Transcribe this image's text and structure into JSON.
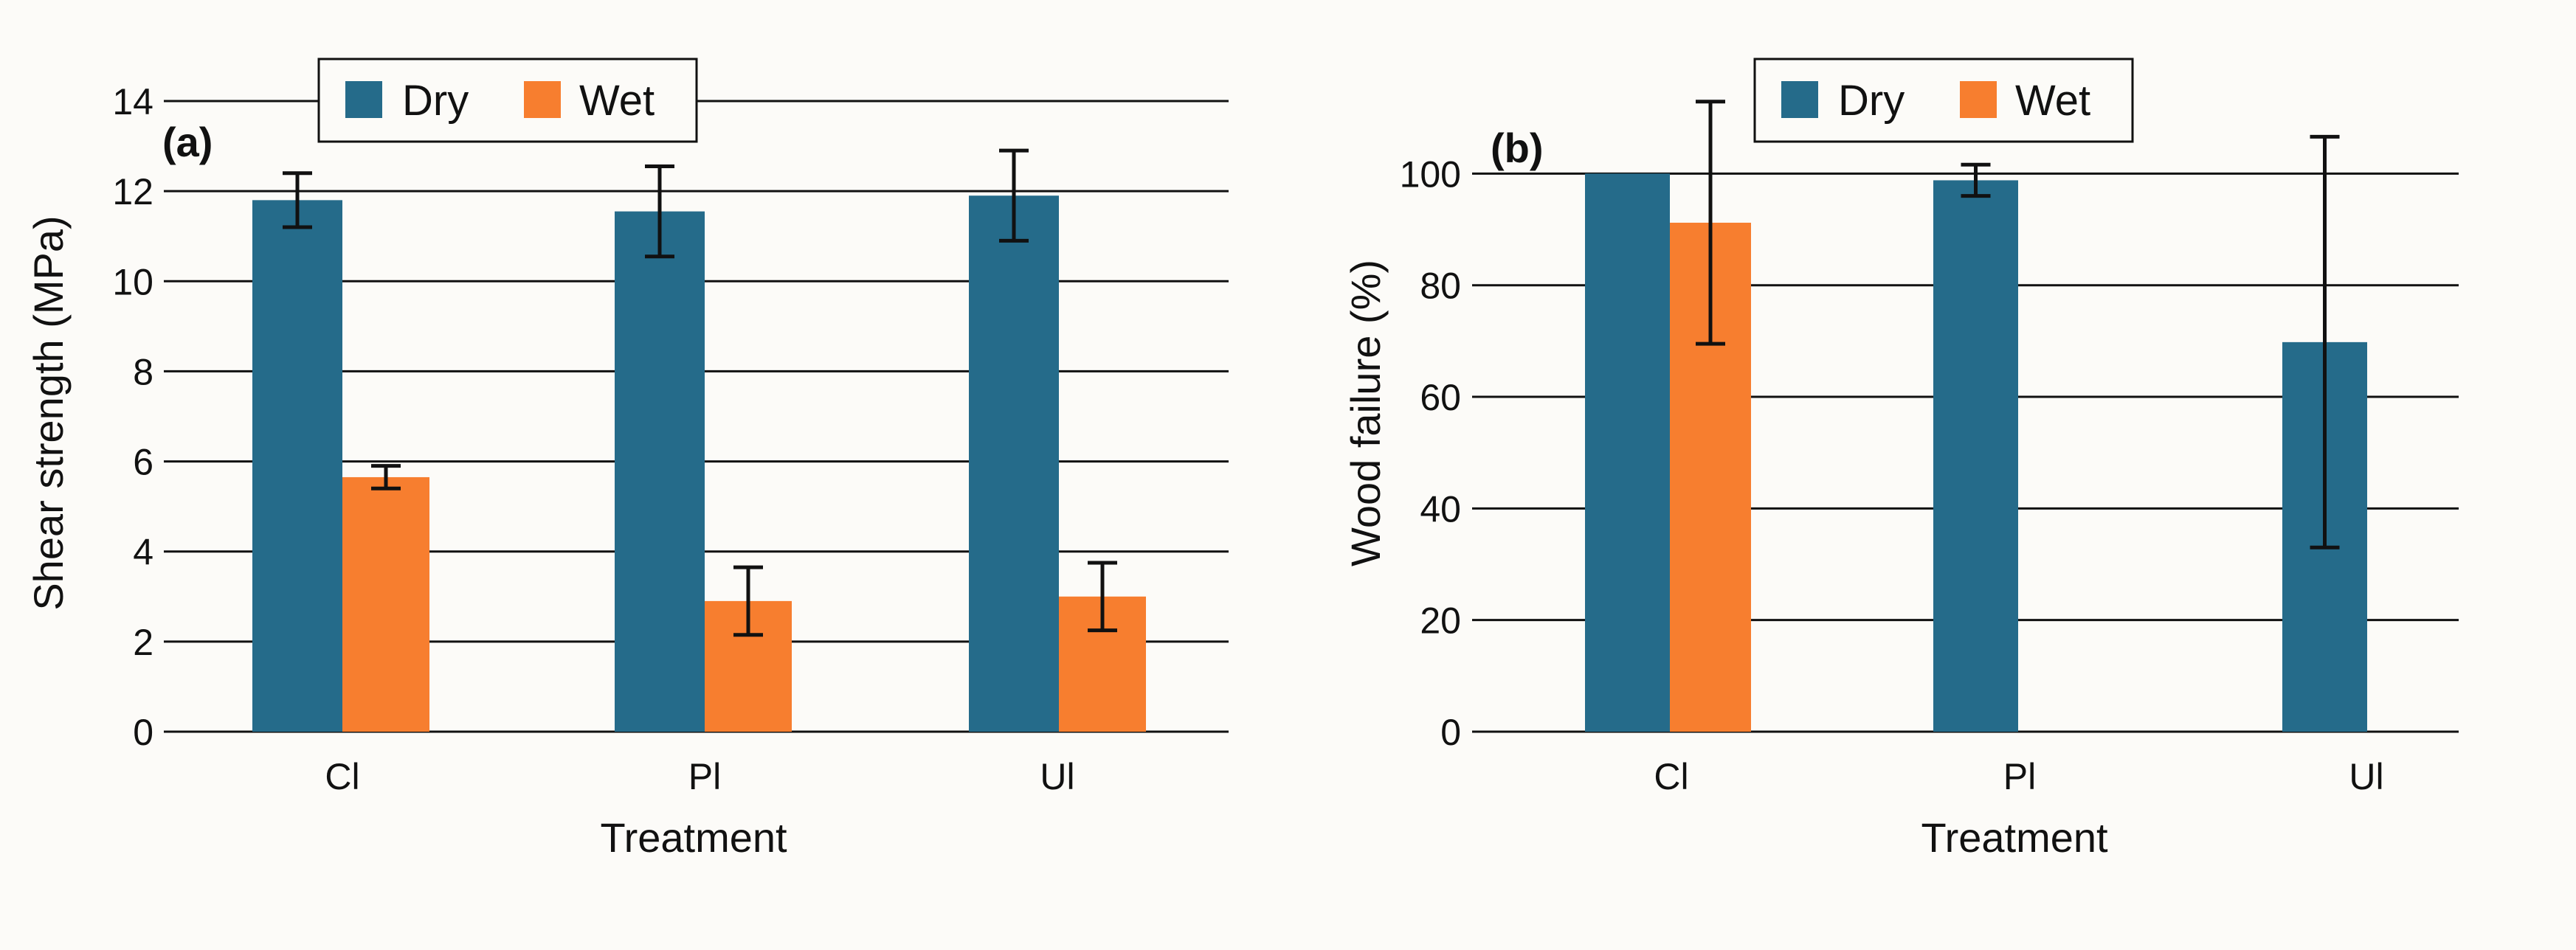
{
  "colors": {
    "dry": "#256b8a",
    "wet": "#f77e2f",
    "grid": "#111111",
    "error_bar": "#111111",
    "background": "#fcfbf8"
  },
  "chart_data": [
    {
      "type": "bar",
      "panel_label": "(a)",
      "categories": [
        "Cl",
        "Pl",
        "Ul"
      ],
      "series": [
        {
          "name": "Dry",
          "values": [
            11.8,
            11.55,
            11.9
          ],
          "errors": [
            0.6,
            1.0,
            1.0
          ]
        },
        {
          "name": "Wet",
          "values": [
            5.65,
            2.9,
            3.0
          ],
          "errors": [
            0.25,
            0.75,
            0.75
          ]
        }
      ],
      "xlabel": "Treatment",
      "ylabel": "Shear strength (MPa)",
      "ylim": [
        0,
        14
      ],
      "yticks": [
        0,
        2,
        4,
        6,
        8,
        10,
        12,
        14
      ],
      "grid": true,
      "legend_position": "top-center"
    },
    {
      "type": "bar",
      "panel_label": "(b)",
      "categories": [
        "Cl",
        "Pl",
        "Ul"
      ],
      "series": [
        {
          "name": "Dry",
          "values": [
            100,
            98.8,
            69.8
          ],
          "errors": [
            null,
            2.8,
            36.8
          ]
        },
        {
          "name": "Wet",
          "values": [
            91.2,
            0,
            0
          ],
          "errors": [
            21.7,
            null,
            null
          ]
        }
      ],
      "xlabel": "Treatment",
      "ylabel": "Wood failure (%)",
      "ylim": [
        0,
        113
      ],
      "yticks": [
        0,
        20,
        40,
        60,
        80,
        100
      ],
      "grid": true,
      "legend_position": "top-center"
    }
  ]
}
